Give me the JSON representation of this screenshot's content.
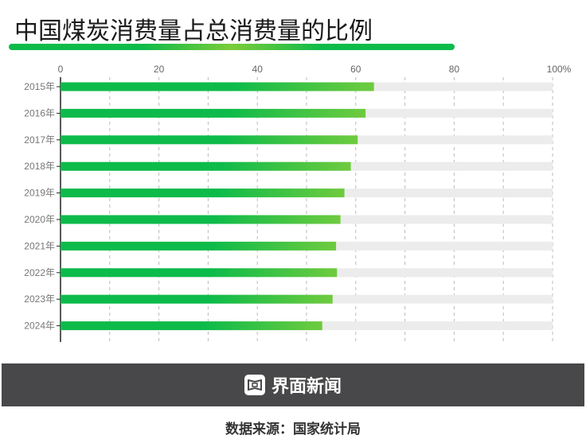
{
  "chart_data": {
    "type": "bar",
    "orientation": "horizontal",
    "title": "中国煤炭消费量占总消费量的比例",
    "categories": [
      "2015年",
      "2016年",
      "2017年",
      "2018年",
      "2019年",
      "2020年",
      "2021年",
      "2022年",
      "2023年",
      "2024年"
    ],
    "values": [
      63.7,
      62.0,
      60.4,
      59.0,
      57.7,
      56.9,
      56.0,
      56.2,
      55.3,
      53.2
    ],
    "xlim": [
      0,
      100
    ],
    "xticks": [
      "0",
      "20",
      "40",
      "60",
      "80",
      "100%"
    ],
    "xtick_values": [
      0,
      20,
      40,
      60,
      80,
      100
    ],
    "grid": true,
    "xlabel": "",
    "ylabel": "",
    "colors": {
      "bar_start": "#0dbb4a",
      "bar_end": "#6fcb3e",
      "track": "#ececec",
      "grid": "#bbbbbb"
    }
  },
  "footer": {
    "brand": "界面新闻",
    "source": "数据来源：国家统计局"
  }
}
